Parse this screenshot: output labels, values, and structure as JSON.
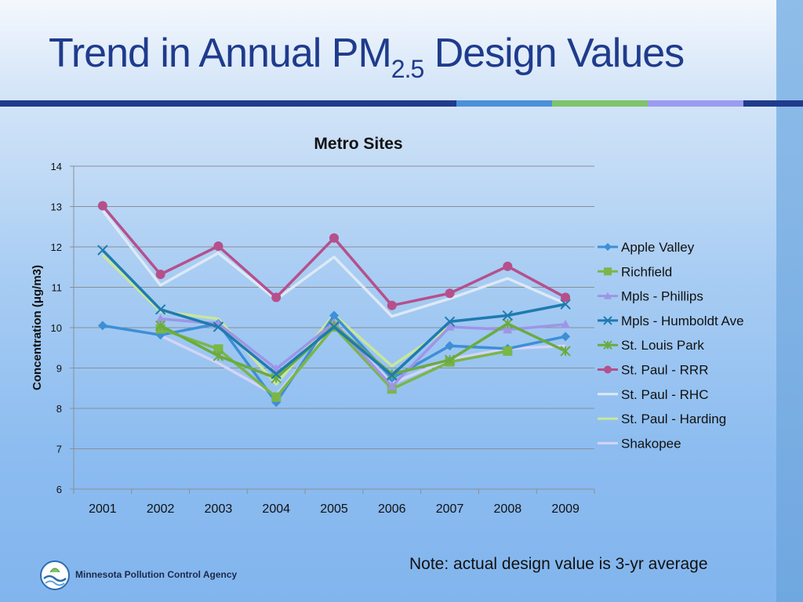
{
  "slide": {
    "title_main": "Trend in Annual PM",
    "title_sub": "2.5",
    "title_end": " Design Values",
    "note": "Note: actual design value is 3-yr average",
    "org_name": "Minnesota Pollution Control Agency"
  },
  "colors": {
    "title": "#1f3b8c",
    "rule_dark": "#1f3b8c",
    "rule_accent_1": "#4a90d9",
    "rule_accent_2": "#7fc36a",
    "rule_accent_3": "#9b9bf0"
  },
  "chart_data": {
    "type": "line",
    "title": "Metro Sites",
    "ylabel": "Concentration (μg/m3)",
    "xlabel": "",
    "ylim": [
      6,
      14
    ],
    "yticks": [
      "6",
      "7",
      "8",
      "9",
      "10",
      "11",
      "12",
      "13",
      "14"
    ],
    "categories": [
      "2001",
      "2002",
      "2003",
      "2004",
      "2005",
      "2006",
      "2007",
      "2008",
      "2009"
    ],
    "grid": "horizontal",
    "legend_position": "right",
    "series": [
      {
        "name": "Apple Valley",
        "color": "#3d8fd6",
        "marker": "diamond",
        "values": [
          10.05,
          9.82,
          10.1,
          8.15,
          10.3,
          8.75,
          9.55,
          9.48,
          9.78
        ]
      },
      {
        "name": "Richfield",
        "color": "#7ab648",
        "marker": "square",
        "values": [
          null,
          9.97,
          9.47,
          8.28,
          10.02,
          8.48,
          9.15,
          9.42,
          null
        ]
      },
      {
        "name": "Mpls - Phillips",
        "color": "#9e95e6",
        "marker": "triangle",
        "values": [
          null,
          10.22,
          10.1,
          8.98,
          10.12,
          8.55,
          10.02,
          9.95,
          10.08
        ]
      },
      {
        "name": "Mpls - Humboldt Ave",
        "color": "#1e7bb0",
        "marker": "x",
        "values": [
          11.92,
          10.45,
          10.02,
          8.85,
          10.02,
          8.82,
          10.15,
          10.3,
          10.58
        ]
      },
      {
        "name": "St. Louis Park",
        "color": "#6bab3f",
        "marker": "star",
        "values": [
          null,
          10.05,
          9.3,
          8.75,
          10.05,
          8.85,
          9.2,
          10.1,
          9.42
        ]
      },
      {
        "name": "St. Paul - RRR",
        "color": "#b5508c",
        "marker": "circle",
        "values": [
          13.02,
          11.32,
          12.02,
          10.75,
          12.22,
          10.55,
          10.85,
          11.52,
          10.75
        ]
      },
      {
        "name": "St. Paul - RHC",
        "color": "#dde9f6",
        "marker": "none",
        "values": [
          12.9,
          11.05,
          11.85,
          10.7,
          11.75,
          10.28,
          10.72,
          11.22,
          10.6
        ]
      },
      {
        "name": "St. Paul - Harding",
        "color": "#c9e69b",
        "marker": "none",
        "values": [
          11.8,
          10.4,
          10.22,
          8.6,
          10.32,
          9.05,
          10.02,
          null,
          null
        ]
      },
      {
        "name": "Shakopee",
        "color": "#d4d4f7",
        "marker": "none",
        "values": [
          null,
          9.8,
          9.12,
          8.32,
          10.08,
          8.62,
          9.22,
          9.48,
          9.55
        ]
      }
    ]
  }
}
